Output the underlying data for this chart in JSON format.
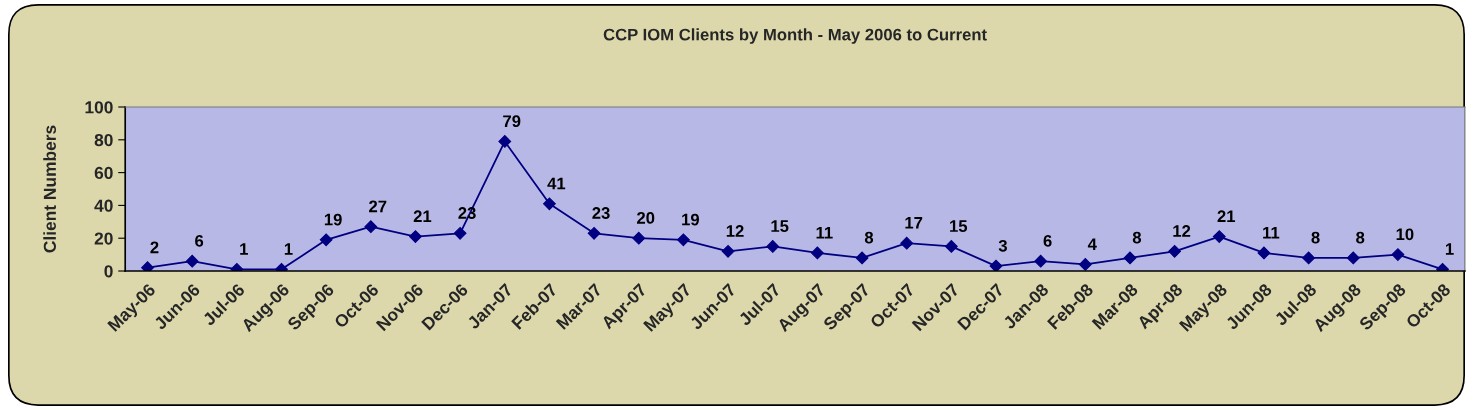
{
  "chart_data": {
    "type": "line",
    "title": "CCP IOM Clients by Month - May 2006 to Current",
    "ylabel": "Client Numbers",
    "categories": [
      "May-06",
      "Jun-06",
      "Jul-06",
      "Aug-06",
      "Sep-06",
      "Oct-06",
      "Nov-06",
      "Dec-06",
      "Jan-07",
      "Feb-07",
      "Mar-07",
      "Apr-07",
      "May-07",
      "Jun-07",
      "Jul-07",
      "Aug-07",
      "Sep-07",
      "Oct-07",
      "Nov-07",
      "Dec-07",
      "Jan-08",
      "Feb-08",
      "Mar-08",
      "Apr-08",
      "May-08",
      "Jun-08",
      "Jul-08",
      "Aug-08",
      "Sep-08",
      "Oct-08"
    ],
    "series": [
      {
        "color": "#000080",
        "values": [
          2,
          6,
          1,
          1,
          19,
          27,
          21,
          23,
          79,
          41,
          23,
          20,
          19,
          12,
          15,
          11,
          8,
          17,
          15,
          3,
          6,
          4,
          8,
          12,
          21,
          11,
          8,
          8,
          10,
          1
        ]
      }
    ],
    "ylim": [
      0,
      100
    ],
    "yticks": [
      0,
      20,
      40,
      60,
      80,
      100
    ],
    "data_labels": true,
    "marker": "diamond",
    "line_style": "solid",
    "grid": false,
    "legend": false
  }
}
